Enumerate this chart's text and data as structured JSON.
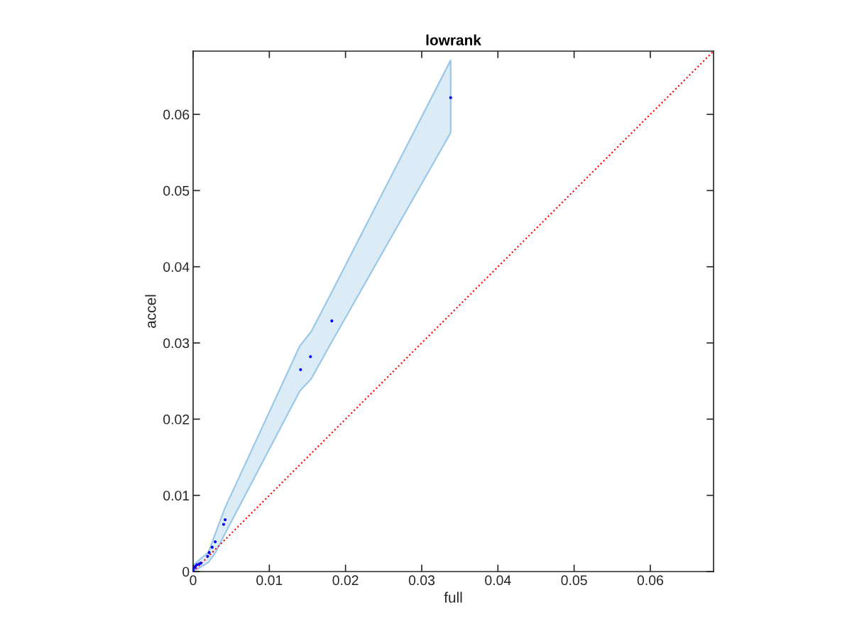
{
  "chart_data": {
    "type": "scatter",
    "title": "lowrank",
    "xlabel": "full",
    "ylabel": "accel",
    "xlim": [
      0,
      0.0683
    ],
    "ylim": [
      0,
      0.0683
    ],
    "xticks": [
      0,
      0.01,
      0.02,
      0.03,
      0.04,
      0.05,
      0.06
    ],
    "yticks": [
      0,
      0.01,
      0.02,
      0.03,
      0.04,
      0.05,
      0.06
    ],
    "grid": false,
    "marker": "circle",
    "series": [
      {
        "type": "line",
        "color": "#9ac8e6",
        "x": [
          0,
          0.001,
          0.002,
          0.003,
          0.0042,
          0.014,
          0.0155,
          0.018,
          0.0338
        ],
        "values": [
          null,
          null,
          null,
          null,
          null,
          null,
          null,
          null,
          null
        ],
        "lower": [
          0,
          0.0006,
          0.0012,
          0.0026,
          0.005,
          0.0237,
          0.0253,
          0.0298,
          0.0576
        ],
        "upper": [
          0.0008,
          0.0017,
          0.0025,
          0.0052,
          0.0084,
          0.0296,
          0.0315,
          0.0363,
          0.0671
        ]
      },
      {
        "type": "line",
        "color": "#ff0000",
        "line_style": "dotted",
        "marker": "none",
        "x": [
          0,
          0.0683
        ],
        "values": [
          0,
          0.0683
        ]
      },
      {
        "color": "#0000ff",
        "x": [
          0.0,
          0.0002,
          0.0003,
          0.0005,
          0.0008,
          0.001,
          0.0019,
          0.0021,
          0.0025,
          0.0029,
          0.004,
          0.0042,
          0.0141,
          0.0154,
          0.0182,
          0.0338
        ],
        "values": [
          0.0002,
          0.0005,
          0.0007,
          0.0009,
          0.001,
          0.0011,
          0.002,
          0.0025,
          0.0032,
          0.0039,
          0.0062,
          0.0068,
          0.0265,
          0.0282,
          0.0329,
          0.0622
        ]
      }
    ]
  }
}
